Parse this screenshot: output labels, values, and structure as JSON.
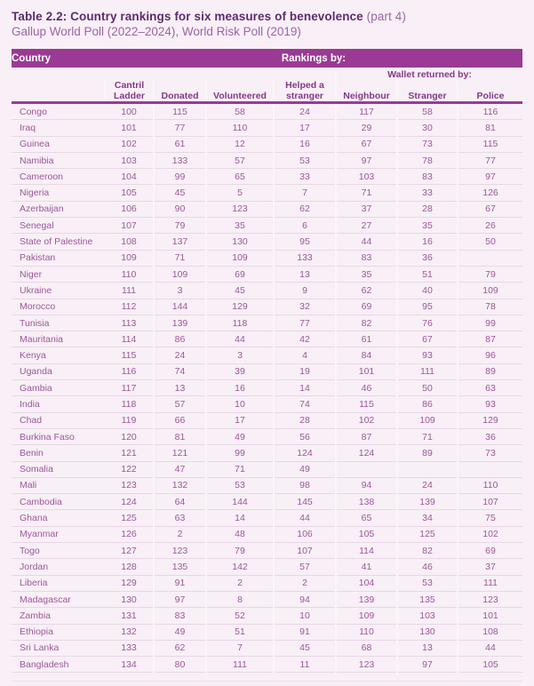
{
  "title": {
    "main": "Table 2.2: Country rankings for six measures of benevolence",
    "part": " (part 4)",
    "subtitle": "Gallup World Poll (2022–2024), World Risk Poll (2019)"
  },
  "colors": {
    "accent_bar": "#9a3a94",
    "title_text": "#5e2b6f",
    "subtitle_text": "#9c64a6",
    "header_label": "#873788",
    "body_text": "#9e559c",
    "page_background": "#f8f0f6"
  },
  "table": {
    "bar": {
      "country_label": "Country",
      "rankings_label": "Rankings by:"
    },
    "group_header": "Wallet returned by:",
    "columns": [
      "Cantril Ladder",
      "Donated",
      "Volunteered",
      "Helped a stranger",
      "Neighbour",
      "Stranger",
      "Police"
    ],
    "rows": [
      {
        "country": "Congo",
        "values": [
          "100",
          "115",
          "58",
          "24",
          "117",
          "58",
          "116"
        ]
      },
      {
        "country": "Iraq",
        "values": [
          "101",
          "77",
          "110",
          "17",
          "29",
          "30",
          "81"
        ]
      },
      {
        "country": "Guinea",
        "values": [
          "102",
          "61",
          "12",
          "16",
          "67",
          "73",
          "115"
        ]
      },
      {
        "country": "Namibia",
        "values": [
          "103",
          "133",
          "57",
          "53",
          "97",
          "78",
          "77"
        ]
      },
      {
        "country": "Cameroon",
        "values": [
          "104",
          "99",
          "65",
          "33",
          "103",
          "83",
          "97"
        ]
      },
      {
        "country": "Nigeria",
        "values": [
          "105",
          "45",
          "5",
          "7",
          "71",
          "33",
          "126"
        ]
      },
      {
        "country": "Azerbaijan",
        "values": [
          "106",
          "90",
          "123",
          "62",
          "37",
          "28",
          "67"
        ]
      },
      {
        "country": "Senegal",
        "values": [
          "107",
          "79",
          "35",
          "6",
          "27",
          "35",
          "26"
        ]
      },
      {
        "country": "State of Palestine",
        "values": [
          "108",
          "137",
          "130",
          "95",
          "44",
          "16",
          "50"
        ]
      },
      {
        "country": "Pakistan",
        "values": [
          "109",
          "71",
          "109",
          "133",
          "83",
          "36",
          ""
        ]
      },
      {
        "country": "Niger",
        "values": [
          "110",
          "109",
          "69",
          "13",
          "35",
          "51",
          "79"
        ]
      },
      {
        "country": "Ukraine",
        "values": [
          "111",
          "3",
          "45",
          "9",
          "62",
          "40",
          "109"
        ]
      },
      {
        "country": "Morocco",
        "values": [
          "112",
          "144",
          "129",
          "32",
          "69",
          "95",
          "78"
        ]
      },
      {
        "country": "Tunisia",
        "values": [
          "113",
          "139",
          "118",
          "77",
          "82",
          "76",
          "99"
        ]
      },
      {
        "country": "Mauritania",
        "values": [
          "114",
          "86",
          "44",
          "42",
          "61",
          "67",
          "87"
        ]
      },
      {
        "country": "Kenya",
        "values": [
          "115",
          "24",
          "3",
          "4",
          "84",
          "93",
          "96"
        ]
      },
      {
        "country": "Uganda",
        "values": [
          "116",
          "74",
          "39",
          "19",
          "101",
          "111",
          "89"
        ]
      },
      {
        "country": "Gambia",
        "values": [
          "117",
          "13",
          "16",
          "14",
          "46",
          "50",
          "63"
        ]
      },
      {
        "country": "India",
        "values": [
          "118",
          "57",
          "10",
          "74",
          "115",
          "86",
          "93"
        ]
      },
      {
        "country": "Chad",
        "values": [
          "119",
          "66",
          "17",
          "28",
          "102",
          "109",
          "129"
        ]
      },
      {
        "country": "Burkina Faso",
        "values": [
          "120",
          "81",
          "49",
          "56",
          "87",
          "71",
          "36"
        ]
      },
      {
        "country": "Benin",
        "values": [
          "121",
          "121",
          "99",
          "124",
          "124",
          "89",
          "73"
        ]
      },
      {
        "country": "Somalia",
        "values": [
          "122",
          "47",
          "71",
          "49",
          "",
          "",
          ""
        ]
      },
      {
        "country": "Mali",
        "values": [
          "123",
          "132",
          "53",
          "98",
          "94",
          "24",
          "110"
        ]
      },
      {
        "country": "Cambodia",
        "values": [
          "124",
          "64",
          "144",
          "145",
          "138",
          "139",
          "107"
        ]
      },
      {
        "country": "Ghana",
        "values": [
          "125",
          "63",
          "14",
          "44",
          "65",
          "34",
          "75"
        ]
      },
      {
        "country": "Myanmar",
        "values": [
          "126",
          "2",
          "48",
          "106",
          "105",
          "125",
          "102"
        ]
      },
      {
        "country": "Togo",
        "values": [
          "127",
          "123",
          "79",
          "107",
          "114",
          "82",
          "69"
        ]
      },
      {
        "country": "Jordan",
        "values": [
          "128",
          "135",
          "142",
          "57",
          "41",
          "46",
          "37"
        ]
      },
      {
        "country": "Liberia",
        "values": [
          "129",
          "91",
          "2",
          "2",
          "104",
          "53",
          "111"
        ]
      },
      {
        "country": "Madagascar",
        "values": [
          "130",
          "97",
          "8",
          "94",
          "139",
          "135",
          "123"
        ]
      },
      {
        "country": "Zambia",
        "values": [
          "131",
          "83",
          "52",
          "10",
          "109",
          "103",
          "101"
        ]
      },
      {
        "country": "Ethiopia",
        "values": [
          "132",
          "49",
          "51",
          "91",
          "110",
          "130",
          "108"
        ]
      },
      {
        "country": "Sri Lanka",
        "values": [
          "133",
          "62",
          "7",
          "45",
          "68",
          "13",
          "44"
        ]
      },
      {
        "country": "Bangladesh",
        "values": [
          "134",
          "80",
          "111",
          "11",
          "123",
          "97",
          "105"
        ]
      }
    ]
  }
}
